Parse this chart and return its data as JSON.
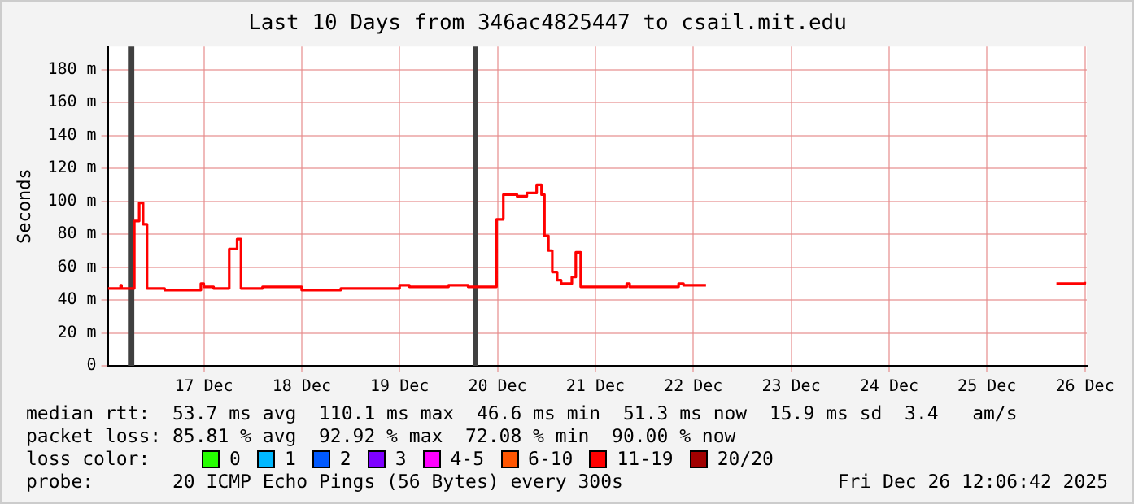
{
  "chart_data": {
    "type": "step",
    "title": "Last 10 Days from 346ac4825447 to csail.mit.edu",
    "ylabel": "Seconds",
    "legend_title": "loss color:",
    "xlim": [
      "--12-16T00:29",
      "--12-26T00:29"
    ],
    "xticks": [
      {
        "value": "--12-17",
        "label": "17 Dec"
      },
      {
        "value": "--12-18",
        "label": "18 Dec"
      },
      {
        "value": "--12-19",
        "label": "19 Dec"
      },
      {
        "value": "--12-20",
        "label": "20 Dec"
      },
      {
        "value": "--12-21",
        "label": "21 Dec"
      },
      {
        "value": "--12-22",
        "label": "22 Dec"
      },
      {
        "value": "--12-23",
        "label": "23 Dec"
      },
      {
        "value": "--12-24",
        "label": "24 Dec"
      },
      {
        "value": "--12-25",
        "label": "25 Dec"
      },
      {
        "value": "--12-26",
        "label": "26 Dec"
      }
    ],
    "ylim": [
      0,
      194
    ],
    "yticks": [
      0,
      {
        "value": 20,
        "label": "20 m"
      },
      {
        "value": 40,
        "label": "40 m"
      },
      {
        "value": 60,
        "label": "60 m"
      },
      {
        "value": 80,
        "label": "80 m"
      },
      {
        "value": 100,
        "label": "100 m"
      },
      {
        "value": 120,
        "label": "120 m"
      },
      {
        "value": 140,
        "label": "140 m"
      },
      {
        "value": 160,
        "label": "160 m"
      },
      {
        "value": 180,
        "label": "180 m"
      }
    ],
    "grid": true,
    "legend": "bottom",
    "marker": "none",
    "line_style": "solid",
    "series": [
      {
        "name": "0",
        "color": "#26ff00"
      },
      {
        "name": "1",
        "color": "#00b8ff"
      },
      {
        "name": "2",
        "color": "#0059ff"
      },
      {
        "name": "3",
        "color": "#7e00ff"
      },
      {
        "name": "4-5",
        "color": "#ff00ff"
      },
      {
        "name": "6-10",
        "color": "#ff5500"
      },
      {
        "name": "11-19",
        "color": "#ff0000",
        "x": [
          "--12-16T00:29",
          "--12-16T03:22",
          "--12-16T03:36",
          "--12-16T03:50",
          "--12-16T06:58",
          "--12-16T08:10",
          "--12-16T09:07",
          "--12-16T10:05",
          "--12-16T14:24",
          "--12-16T23:17",
          "--12-17T00:00",
          "--12-17T02:24",
          "--12-17T06:14",
          "--12-17T08:10",
          "--12-17T09:07",
          "--12-17T14:24",
          "--12-18T00:00",
          "--12-18T09:36",
          "--12-18T19:12",
          "--12-19T00:00",
          "--12-19T02:24",
          "--12-19T12:00",
          "--12-19T16:48",
          "--12-19T21:36",
          "--12-19T23:46",
          "--12-20T01:26",
          "--12-20T04:48",
          "--12-20T07:12",
          "--12-20T09:36",
          "--12-20T10:48",
          "--12-20T11:31",
          "--12-20T12:29",
          "--12-20T13:26",
          "--12-20T14:38",
          "--12-20T15:36",
          "--12-20T17:46",
          "--12-20T18:14",
          "--12-20T19:12",
          "--12-20T20:24",
          "--12-21T07:12",
          "--12-21T07:41",
          "--12-21T08:24",
          "--12-21T19:12",
          "--12-21T20:24",
          "--12-21T21:36",
          "--12-22T03:07",
          "--12-22T03:22",
          "--12-25T17:02",
          "--12-25T22:48",
          "--12-26T00:00"
        ],
        "values": [
          47,
          47,
          49,
          47,
          88,
          99,
          86,
          47,
          46,
          50,
          48,
          47,
          71,
          77,
          47,
          48,
          46,
          47,
          47,
          49,
          48,
          49,
          48,
          48,
          89,
          104,
          103,
          105,
          110,
          104,
          79,
          70,
          57,
          52,
          50,
          50,
          54,
          69,
          48,
          48,
          50,
          48,
          48,
          50,
          49,
          49,
          null,
          50,
          50,
          51
        ]
      },
      {
        "name": "20/20",
        "color": "#a10000"
      }
    ],
    "bands": [
      {
        "axis": "x",
        "from": "--12-16T05:24",
        "to": "--12-16T06:58",
        "color": "#404040"
      },
      {
        "axis": "x",
        "from": "--12-19T18:00",
        "to": "--12-19T19:12",
        "color": "#404040"
      }
    ],
    "annotations": [
      "median rtt:  53.7 ms avg  110.1 ms max  46.6 ms min  51.3 ms now  15.9 ms sd  3.4   am/s",
      "packet loss: 85.81 % avg  92.92 % max  72.08 % min  90.00 % now",
      "probe:       20 ICMP Echo Pings (56 Bytes) every 300s",
      "Fri Dec 26 12:06:42 2025"
    ]
  }
}
